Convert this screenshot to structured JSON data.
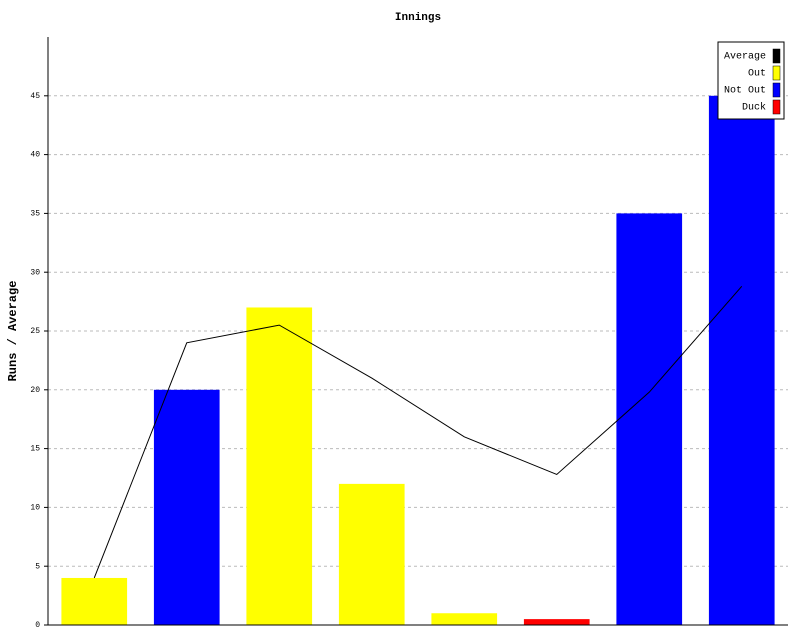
{
  "chart_data": {
    "type": "bar",
    "title": "Innings",
    "y_label": "Runs / Average",
    "categories": [
      null,
      null,
      null,
      null,
      null,
      null,
      null,
      null
    ],
    "series": [
      {
        "name": "Average",
        "type": "line",
        "color": "#000000",
        "values": [
          4,
          24,
          25.5,
          21,
          16,
          12.8,
          19.8,
          28.8
        ]
      },
      {
        "name": "Out",
        "type": "bar",
        "color": "#ffff00",
        "values": [
          4,
          null,
          27,
          12,
          1,
          null,
          null,
          null
        ]
      },
      {
        "name": "Not Out",
        "type": "bar",
        "color": "#0000ff",
        "values": [
          null,
          20,
          null,
          null,
          null,
          null,
          35,
          45
        ]
      },
      {
        "name": "Duck",
        "type": "bar",
        "color": "#ff0000",
        "values": [
          null,
          null,
          null,
          null,
          null,
          0.5,
          null,
          null
        ]
      }
    ],
    "ylim": [
      0,
      50
    ],
    "yticks": [
      0,
      5,
      10,
      15,
      20,
      25,
      30,
      35,
      40,
      45
    ],
    "grid": true,
    "legend": "top-right"
  }
}
